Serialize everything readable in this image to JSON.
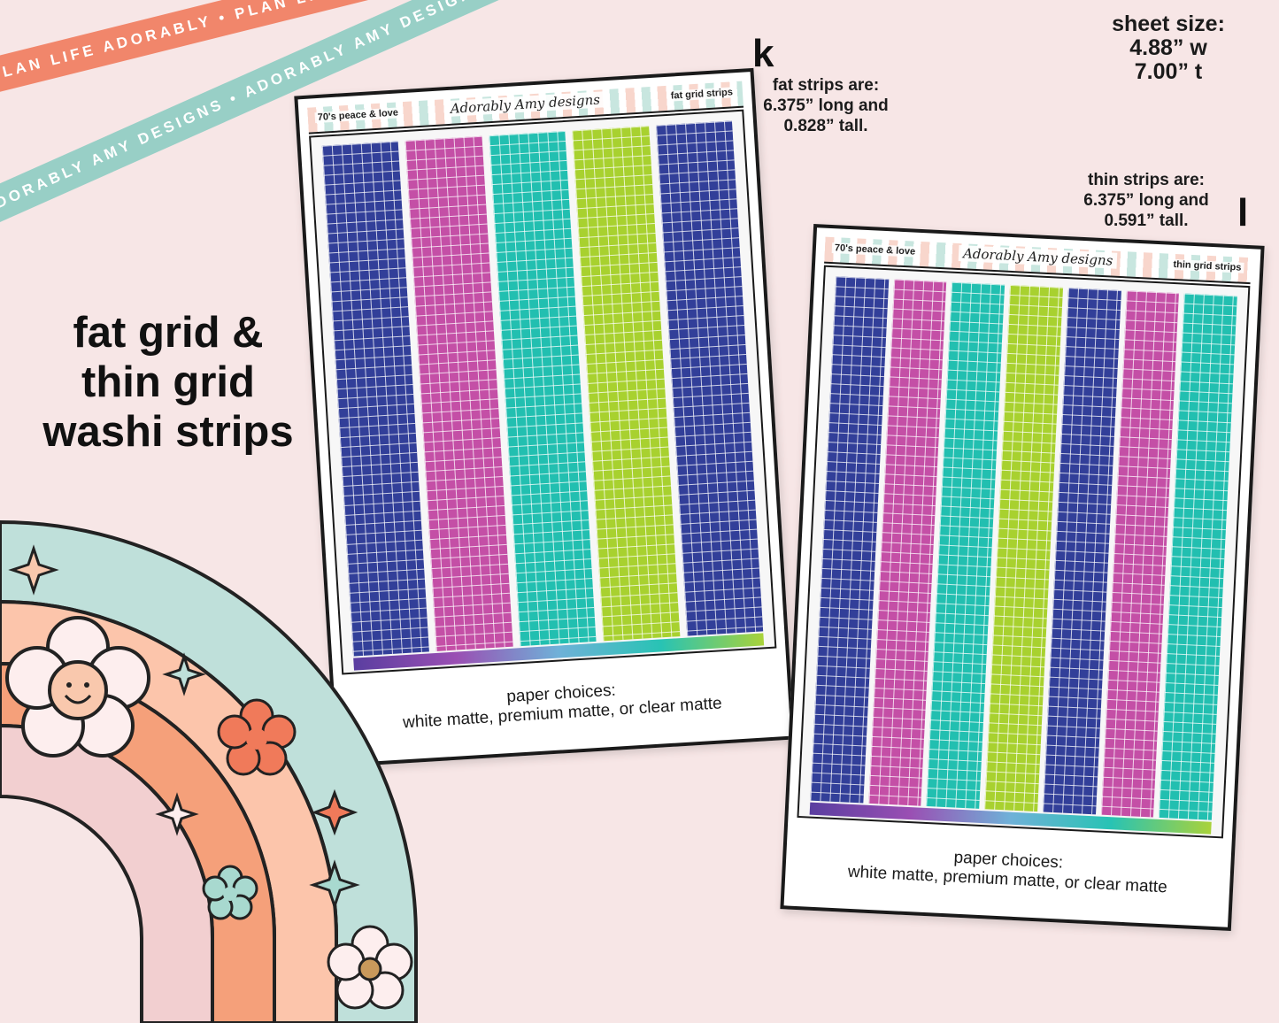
{
  "ribbons": {
    "orange_text": "PLAN LIFE ADORABLY • PLAN LIFE ADORABLY • PLAN LIFE ADORABLY • PLAN LIFE ADORABLY",
    "teal_text": "ADORABLY AMY DESIGNS • ADORABLY AMY DESIGNS • ADORABLY AMY DESIGNS • ADORABLY AMY DESIGNS"
  },
  "headline": {
    "line1": "fat grid &",
    "line2": "thin grid",
    "line3": "washi strips"
  },
  "sheet_size": {
    "line1": "sheet size:",
    "line2": "4.88” w",
    "line3": "7.00” t"
  },
  "fat_info": {
    "letter": "k",
    "line1": "fat strips are:",
    "line2": "6.375” long and",
    "line3": "0.828” tall."
  },
  "thin_info": {
    "letter": "l",
    "line1": "thin strips are:",
    "line2": "6.375” long and",
    "line3": "0.591” tall."
  },
  "sheet_fat": {
    "header_left": "70's peace & love",
    "brand": "Adorably Amy designs",
    "header_right": "fat grid strips",
    "strip_colors": [
      "#323f99",
      "#c44fa6",
      "#22bfb0",
      "#a8d12f",
      "#323f99"
    ],
    "paper_line1": "paper choices:",
    "paper_line2": "white matte, premium matte, or clear matte"
  },
  "sheet_thin": {
    "header_left": "70's peace & love",
    "brand": "Adorably Amy designs",
    "header_right": "thin grid strips",
    "strip_colors": [
      "#323f99",
      "#c44fa6",
      "#22bfb0",
      "#a8d12f",
      "#323f99",
      "#c44fa6",
      "#22bfb0"
    ],
    "paper_line1": "paper choices:",
    "paper_line2": "white matte, premium matte, or clear matte"
  },
  "rainbow_colors": {
    "outer": "#bfe0da",
    "band2": "#fcc5ab",
    "band3": "#f5a07a",
    "inner": "#f2cfd0",
    "flower": "#fdeeee",
    "flower_orange": "#f07a5a",
    "flower_teal": "#a8d9cf"
  }
}
